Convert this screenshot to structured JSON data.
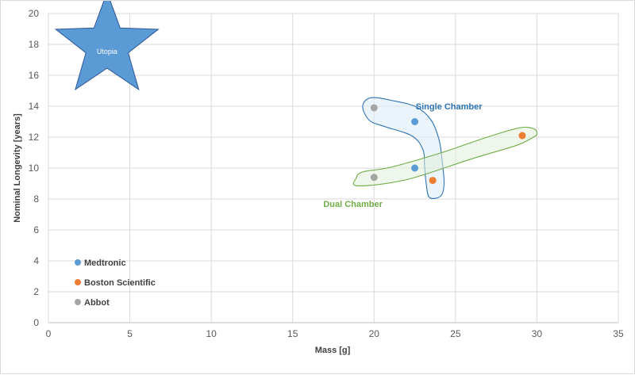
{
  "chart_data": {
    "type": "scatter",
    "xlabel": "Mass [g]",
    "ylabel": "Nominal Longevity [years]",
    "xlim": [
      0,
      35
    ],
    "ylim": [
      0,
      20
    ],
    "x_ticks": [
      0,
      5,
      10,
      15,
      20,
      25,
      30,
      35
    ],
    "y_ticks": [
      0,
      2,
      4,
      6,
      8,
      10,
      12,
      14,
      16,
      18,
      20
    ],
    "grid": true,
    "legend_placement": "bottom-left",
    "series": [
      {
        "name": "Medtronic",
        "color": "#5b9bd5",
        "points": [
          [
            22.5,
            13.0
          ],
          [
            22.5,
            10.0
          ]
        ]
      },
      {
        "name": "Boston Scientific",
        "color": "#ed7d31",
        "points": [
          [
            23.6,
            9.2
          ],
          [
            29.1,
            12.1
          ]
        ]
      },
      {
        "name": "Abbot",
        "color": "#a5a5a5",
        "points": [
          [
            20.0,
            13.9
          ],
          [
            20.0,
            9.4
          ]
        ]
      }
    ],
    "annotations": [
      {
        "text": "Single Chamber",
        "x": 24.6,
        "y": 14.0,
        "color": "#2e75b6"
      },
      {
        "text": "Dual Chamber",
        "x": 18.7,
        "y": 7.7,
        "color": "#70ad47"
      },
      {
        "text": "Utopia",
        "x": 3.6,
        "y": 17.6,
        "color": "#ffffff"
      }
    ],
    "regions": [
      {
        "label": "Single Chamber",
        "stroke": "#2e75b6",
        "fill": "#ddebf7",
        "points": [
          [
            19.8,
            14.55
          ],
          [
            21.2,
            14.35
          ],
          [
            22.6,
            13.95
          ],
          [
            23.5,
            13.1
          ],
          [
            24.0,
            11.8
          ],
          [
            24.2,
            10.3
          ],
          [
            24.3,
            9.0
          ],
          [
            24.1,
            8.2
          ],
          [
            23.4,
            8.1
          ],
          [
            23.2,
            9.0
          ],
          [
            23.1,
            10.1
          ],
          [
            23.0,
            11.2
          ],
          [
            22.3,
            12.1
          ],
          [
            20.6,
            12.7
          ],
          [
            19.7,
            13.1
          ],
          [
            19.3,
            14.0
          ]
        ]
      },
      {
        "label": "Dual Chamber",
        "stroke": "#70ad47",
        "fill": "#e2efda",
        "points": [
          [
            19.0,
            8.85
          ],
          [
            22.0,
            9.25
          ],
          [
            26.0,
            10.6
          ],
          [
            28.7,
            11.45
          ],
          [
            29.7,
            11.95
          ],
          [
            30.0,
            12.2
          ],
          [
            29.8,
            12.55
          ],
          [
            28.9,
            12.6
          ],
          [
            26.8,
            11.95
          ],
          [
            24.0,
            10.95
          ],
          [
            21.0,
            10.05
          ],
          [
            19.3,
            9.75
          ],
          [
            18.9,
            9.35
          ]
        ]
      }
    ],
    "star": {
      "x": 3.6,
      "y": 17.9,
      "color": "#5b9bd5",
      "stroke": "#2f5597"
    }
  }
}
